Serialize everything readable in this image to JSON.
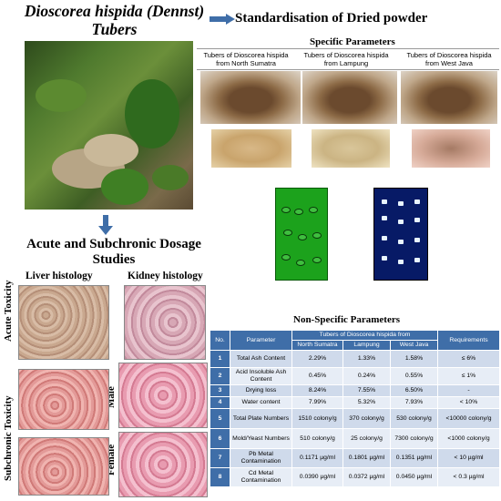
{
  "titles": {
    "main": "Dioscorea hispida (Dennst) Tubers",
    "standardisation": "Standardisation of Dried powder",
    "acute": "Acute and Subchronic Dosage Studies",
    "liver": "Liver histology",
    "kidney": "Kidney histology",
    "acute_toxicity": "Acute Toxicity",
    "subchronic_toxicity": "Subchronic Toxicity",
    "male": "Male",
    "female": "Female"
  },
  "specific": {
    "title": "Specific Parameters",
    "headers": [
      "Tubers of Dioscorea hispida from North Sumatra",
      "Tubers of Dioscorea hispida from Lampung",
      "Tubers of Dioscorea hispida from West Java"
    ]
  },
  "nonspecific": {
    "title": "Non-Specific Parameters",
    "head_no": "No.",
    "head_param": "Parameter",
    "head_group": "Tubers of Dioscorea hispida from",
    "head_req": "Requirements",
    "regions": [
      "North Sumatra",
      "Lampung",
      "West Java"
    ],
    "rows": [
      {
        "no": "1",
        "param": "Total Ash Content",
        "ns": "2.29%",
        "la": "1.33%",
        "wj": "1.58%",
        "req": "≤ 6%"
      },
      {
        "no": "2",
        "param": "Acid Insoluble Ash Content",
        "ns": "0.45%",
        "la": "0.24%",
        "wj": "0.55%",
        "req": "≤ 1%"
      },
      {
        "no": "3",
        "param": "Drying loss",
        "ns": "8.24%",
        "la": "7.55%",
        "wj": "6.50%",
        "req": "-"
      },
      {
        "no": "4",
        "param": "Water content",
        "ns": "7.99%",
        "la": "5.32%",
        "wj": "7.93%",
        "req": "< 10%"
      },
      {
        "no": "5",
        "param": "Total Plate Numbers",
        "ns": "1510 colony/g",
        "la": "370 colony/g",
        "wj": "530 colony/g",
        "req": "<10000 colony/g"
      },
      {
        "no": "6",
        "param": "Mold/Yeast Numbers",
        "ns": "510 colony/g",
        "la": "25 colony/g",
        "wj": "7300 colony/g",
        "req": "<1000 colony/g"
      },
      {
        "no": "7",
        "param": "Pb Metal Contamination",
        "ns": "0.1171 µg/ml",
        "la": "0.1801 µg/ml",
        "wj": "0.1351 µg/ml",
        "req": "< 10 µg/ml"
      },
      {
        "no": "8",
        "param": "Cd Metal Contamination",
        "ns": "0.0390 µg/ml",
        "la": "0.0372 µg/ml",
        "wj": "0.0450 µg/ml",
        "req": "< 0.3 µg/ml"
      }
    ]
  },
  "colors": {
    "table_header": "#3f6ea8",
    "row_odd": "#cfdaeb",
    "row_even": "#e7edf6",
    "arrow": "#3f6ea8"
  }
}
